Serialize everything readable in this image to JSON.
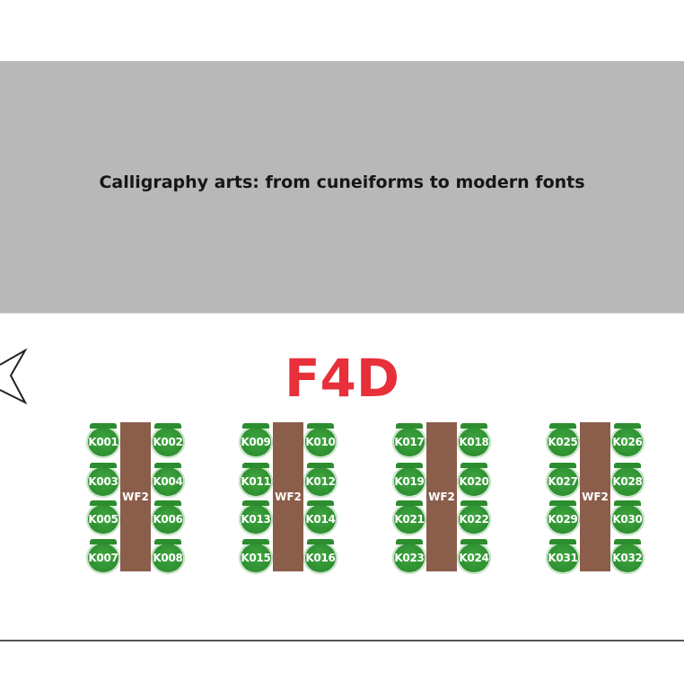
{
  "banner": {
    "title": "Calligraphy arts: from cuneiforms to modern fonts"
  },
  "room": {
    "code": "F4D"
  },
  "colors": {
    "banner": "#b8b8b8",
    "room_code": "#e8303a",
    "seat": "#2c8d2e",
    "table": "#8b5e4b"
  },
  "clusters": [
    {
      "table": "WF2",
      "seats": [
        "K001",
        "K002",
        "K003",
        "K004",
        "K005",
        "K006",
        "K007",
        "K008"
      ]
    },
    {
      "table": "WF2",
      "seats": [
        "K009",
        "K010",
        "K011",
        "K012",
        "K013",
        "K014",
        "K015",
        "K016"
      ]
    },
    {
      "table": "WF2",
      "seats": [
        "K017",
        "K018",
        "K019",
        "K020",
        "K021",
        "K022",
        "K023",
        "K024"
      ]
    },
    {
      "table": "WF2",
      "seats": [
        "K025",
        "K026",
        "K027",
        "K028",
        "K029",
        "K030",
        "K031",
        "K032"
      ]
    }
  ]
}
